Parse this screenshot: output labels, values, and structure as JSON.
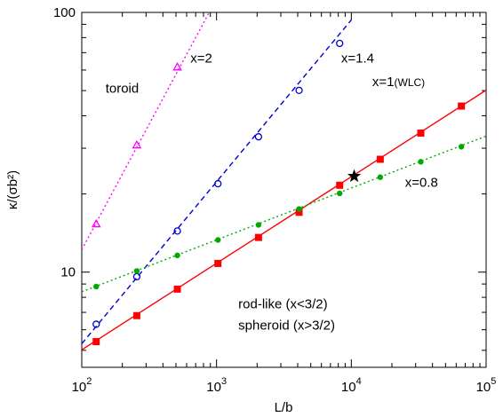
{
  "chart_data": {
    "type": "line",
    "title": "",
    "xlabel": "L/b",
    "ylabel": "κ/(σb²)",
    "xscale": "log",
    "yscale": "log",
    "xlim": [
      100,
      100000
    ],
    "ylim": [
      4.3,
      100
    ],
    "grid": false,
    "x_ticks": [
      {
        "base": "10",
        "exp": "2",
        "value": 100
      },
      {
        "base": "10",
        "exp": "3",
        "value": 1000
      },
      {
        "base": "10",
        "exp": "4",
        "value": 10000
      },
      {
        "base": "10",
        "exp": "5",
        "value": 100000
      }
    ],
    "y_ticks": [
      {
        "label": "10",
        "value": 10
      },
      {
        "label": "100",
        "value": 100
      }
    ],
    "series": [
      {
        "name": "x=2",
        "color": "#ff00ff",
        "line_style": "dotted",
        "marker": "triangle-open",
        "line_x": [
          100,
          900
        ],
        "line_y": [
          12.2,
          102
        ],
        "x": [
          128,
          256,
          512
        ],
        "y": [
          15.3,
          30.8,
          61.5
        ]
      },
      {
        "name": "x=1.4",
        "color": "#0000cc",
        "line_style": "dashed",
        "marker": "circle-open",
        "line_x": [
          100,
          10000
        ],
        "line_y": [
          5.3,
          93.6
        ],
        "x": [
          128,
          256,
          512,
          1024,
          2048,
          4096,
          8192
        ],
        "y": [
          6.3,
          9.6,
          14.4,
          21.9,
          33.2,
          50.1,
          76.0
        ]
      },
      {
        "name": "x=1(WLC)",
        "color": "#ff0000",
        "line_style": "solid",
        "marker": "square-filled",
        "line_x": [
          100,
          100000
        ],
        "line_y": [
          5.02,
          50.2
        ],
        "x": [
          128,
          256,
          512,
          1024,
          2048,
          4096,
          8192,
          16384,
          32768,
          65536
        ],
        "y": [
          5.4,
          6.8,
          8.6,
          10.8,
          13.6,
          17.0,
          21.6,
          27.2,
          34.3,
          43.6
        ]
      },
      {
        "name": "x=0.8",
        "color": "#00aa00",
        "line_style": "dotted",
        "marker": "circle-filled",
        "line_x": [
          100,
          100000
        ],
        "line_y": [
          8.4,
          33.4
        ],
        "x": [
          128,
          256,
          512,
          1024,
          2048,
          4096,
          8192,
          16384,
          32768,
          65536
        ],
        "y": [
          8.8,
          10.1,
          11.6,
          13.3,
          15.2,
          17.5,
          20.1,
          23.2,
          26.6,
          30.4
        ]
      }
    ],
    "special_point": {
      "marker": "star",
      "color": "#000000",
      "x": 10500,
      "y": 23.4
    },
    "annotations": [
      {
        "text": "x=2",
        "x": 640,
        "y": 64
      },
      {
        "text": "x=1.4",
        "x": 8400,
        "y": 64
      },
      {
        "text": "x=1",
        "small": "(WLC)",
        "x": 14300,
        "y": 52
      },
      {
        "text": "x=0.8",
        "x": 25000,
        "y": 21.3
      },
      {
        "text": "toroid",
        "x": 150,
        "y": 49
      },
      {
        "text": "rod-like (x<3/2)",
        "x": 1450,
        "y": 7.25
      },
      {
        "text": "spheroid (x>3/2)",
        "x": 1450,
        "y": 6.0
      }
    ]
  }
}
